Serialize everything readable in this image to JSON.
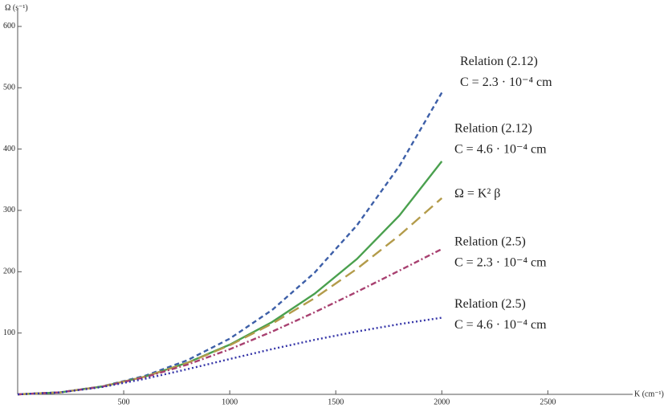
{
  "chart_data": {
    "type": "line",
    "x_label": "K (cm⁻¹)",
    "y_label": "Ω (s⁻¹)",
    "x": [
      0,
      200,
      400,
      600,
      800,
      1000,
      1200,
      1400,
      1600,
      1800,
      2000
    ],
    "xlim": [
      0,
      2900
    ],
    "ylim": [
      0,
      630
    ],
    "xticks": [
      500,
      1000,
      1500,
      2000,
      2500
    ],
    "yticks": [
      100,
      200,
      300,
      400,
      500,
      600
    ],
    "series": [
      {
        "label": [
          "Relation (2.12)",
          "C = 2.3 · 10⁻⁴ cm"
        ],
        "color": "#3d5fa8",
        "dash": "6,4",
        "values": [
          0,
          3.2,
          13.1,
          30.2,
          55.6,
          90.8,
          137.6,
          198.4,
          275.7,
          372.5,
          492
        ]
      },
      {
        "label": [
          "Relation (2.12)",
          "C = 4.6 · 10⁻⁴ cm"
        ],
        "color": "#4aa04e",
        "dash": "none",
        "values": [
          0,
          3.2,
          12.8,
          28.8,
          51.5,
          81.0,
          118.0,
          164.0,
          220.8,
          291.6,
          380
        ]
      },
      {
        "label": [
          "Ω = K² β"
        ],
        "color": "#b39b4a",
        "dash": "14,7",
        "values": [
          0,
          3.2,
          12.8,
          28.8,
          51.2,
          80,
          115.2,
          156.8,
          204.8,
          259.2,
          320
        ]
      },
      {
        "label": [
          "Relation (2.5)",
          "C = 2.3 · 10⁻⁴ cm"
        ],
        "color": "#a84070",
        "dash": "7,3,2,3",
        "values": [
          0,
          3.19,
          12.6,
          27.9,
          48.5,
          73.5,
          102.3,
          133.8,
          167.2,
          201.8,
          237
        ]
      },
      {
        "label": [
          "Relation (2.5)",
          "C = 4.6 · 10⁻⁴ cm"
        ],
        "color": "#3535a8",
        "dash": "2,3",
        "values": [
          0,
          3.15,
          12.0,
          25.3,
          41.0,
          57.6,
          73.8,
          88.9,
          102.5,
          114.5,
          125
        ]
      }
    ]
  }
}
